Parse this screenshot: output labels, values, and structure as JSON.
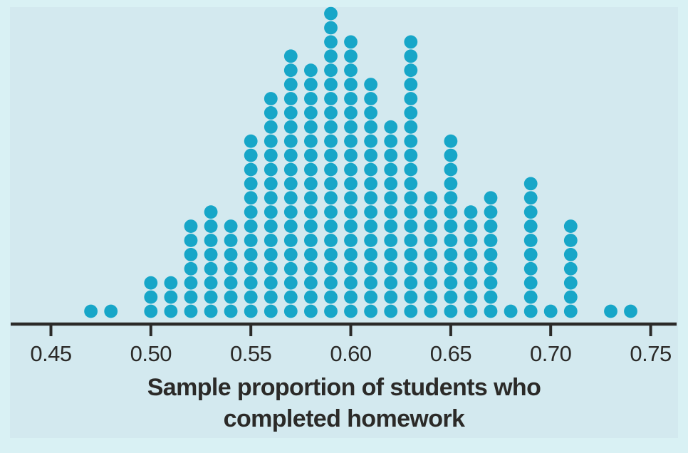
{
  "colors": {
    "background": "#d9f1f4",
    "panel": "#d3e9ef",
    "dot": "#17a6c8",
    "axis": "#2b2a28",
    "text": "#2b2a28"
  },
  "chart_data": {
    "type": "dotplot",
    "xlabel": "Sample proportion of students who completed homework",
    "xlabel_lines": [
      "Sample proportion of students who",
      "completed homework"
    ],
    "x_tick_labels": [
      "0.45",
      "0.50",
      "0.55",
      "0.60",
      "0.65",
      "0.70",
      "0.75"
    ],
    "x_tick_values": [
      0.45,
      0.5,
      0.55,
      0.6,
      0.65,
      0.7,
      0.75
    ],
    "xlim": [
      0.43,
      0.765
    ],
    "grid": false,
    "x_values": [
      0.47,
      0.48,
      0.5,
      0.51,
      0.52,
      0.53,
      0.54,
      0.55,
      0.56,
      0.57,
      0.58,
      0.59,
      0.6,
      0.61,
      0.62,
      0.63,
      0.64,
      0.65,
      0.66,
      0.67,
      0.68,
      0.69,
      0.7,
      0.71,
      0.73,
      0.74
    ],
    "counts": [
      1,
      1,
      3,
      3,
      7,
      8,
      7,
      13,
      16,
      19,
      18,
      22,
      20,
      17,
      14,
      20,
      9,
      13,
      8,
      9,
      1,
      10,
      1,
      7,
      1,
      1
    ]
  }
}
